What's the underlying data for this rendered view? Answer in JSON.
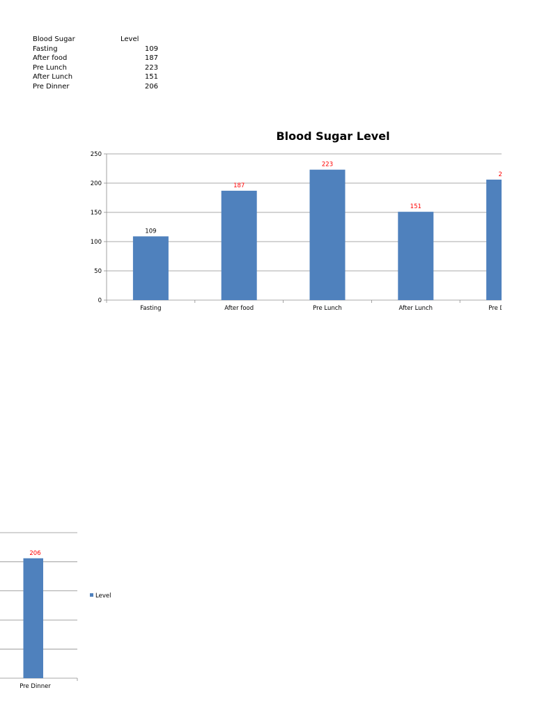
{
  "table": {
    "header": [
      "Blood Sugar",
      "Level"
    ],
    "rows": [
      [
        "Fasting",
        "109"
      ],
      [
        "After food",
        "187"
      ],
      [
        "Pre Lunch",
        "223"
      ],
      [
        "After Lunch",
        "151"
      ],
      [
        "Pre Dinner",
        "206"
      ]
    ]
  },
  "chart_data": {
    "type": "bar",
    "title": "Blood Sugar Level",
    "categories": [
      "Fasting",
      "After food",
      "Pre Lunch",
      "After Lunch",
      "Pre Dinner"
    ],
    "series": [
      {
        "name": "Level",
        "values": [
          109,
          187,
          223,
          151,
          206
        ],
        "color": "#4f81bd"
      }
    ],
    "ylim": [
      0,
      250
    ],
    "yticks": [
      0,
      50,
      100,
      150,
      200,
      250
    ],
    "data_label_colors": [
      "#000000",
      "#ff0000",
      "#ff0000",
      "#ff0000",
      "#ff0000"
    ],
    "grid": true,
    "legend": "right"
  }
}
